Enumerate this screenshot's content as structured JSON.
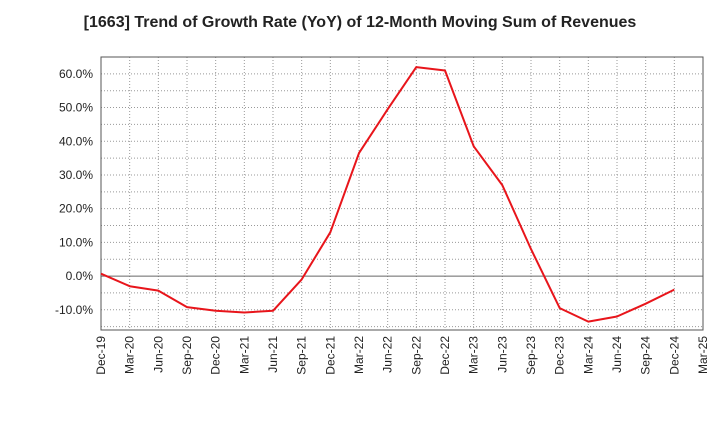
{
  "chart_data": {
    "type": "line",
    "title": "[1663]  Trend of Growth Rate (YoY) of 12-Month Moving Sum of Revenues",
    "xlabel": "",
    "ylabel": "",
    "ylim": [
      -16,
      65
    ],
    "yticks": [
      60,
      50,
      40,
      30,
      20,
      10,
      0,
      -10
    ],
    "ytick_labels": [
      "60.0%",
      "50.0%",
      "40.0%",
      "30.0%",
      "20.0%",
      "10.0%",
      "0.0%",
      "-10.0%"
    ],
    "xtick_labels": [
      "Dec-19",
      "Mar-20",
      "Jun-20",
      "Sep-20",
      "Dec-20",
      "Mar-21",
      "Jun-21",
      "Sep-21",
      "Dec-21",
      "Mar-22",
      "Jun-22",
      "Sep-22",
      "Dec-22",
      "Mar-23",
      "Jun-23",
      "Sep-23",
      "Dec-23",
      "Mar-24",
      "Jun-24",
      "Sep-24",
      "Dec-24",
      "Mar-25"
    ],
    "grid": true,
    "series": [
      {
        "color": "#e8151b",
        "x": [
          "Dec-19",
          "Mar-20",
          "Jun-20",
          "Sep-20",
          "Dec-20",
          "Mar-21",
          "Jun-21",
          "Sep-21",
          "Dec-21",
          "Mar-22",
          "Jun-22",
          "Sep-22",
          "Dec-22",
          "Mar-23",
          "Jun-23",
          "Sep-23",
          "Dec-23",
          "Mar-24",
          "Jun-24",
          "Sep-24",
          "Dec-24"
        ],
        "values": [
          0.7,
          -3.0,
          -4.3,
          -9.2,
          -10.3,
          -10.8,
          -10.3,
          -1.0,
          13.0,
          36.5,
          49.5,
          62.0,
          61.0,
          38.5,
          27.0,
          8.0,
          -9.5,
          -13.5,
          -12.0,
          -8.2,
          -4.0
        ]
      }
    ]
  }
}
